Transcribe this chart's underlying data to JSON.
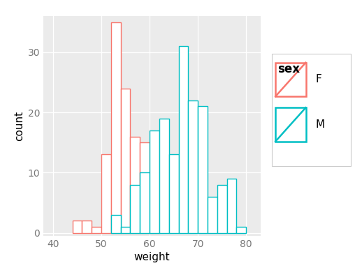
{
  "title": "",
  "xlabel": "weight",
  "ylabel": "count",
  "legend_title": "sex",
  "legend_labels": [
    "F",
    "M"
  ],
  "colors": [
    "#F8766D",
    "#00BFC4"
  ],
  "bg_color": "#EBEBEB",
  "xlim": [
    38,
    83
  ],
  "ylim": [
    -0.5,
    36
  ],
  "yticks": [
    0,
    10,
    20,
    30
  ],
  "xticks": [
    40,
    50,
    60,
    70,
    80
  ],
  "bin_width": 2,
  "F_bins": [
    44,
    46,
    48,
    50,
    52,
    54,
    56,
    58,
    60
  ],
  "F_counts": [
    2,
    2,
    1,
    13,
    35,
    24,
    16,
    15,
    3
  ],
  "M_bins": [
    52,
    54,
    56,
    58,
    60,
    62,
    64,
    66,
    68,
    70,
    72,
    74,
    76,
    78
  ],
  "M_counts": [
    3,
    1,
    8,
    10,
    17,
    19,
    13,
    31,
    22,
    21,
    6,
    8,
    9,
    1
  ]
}
